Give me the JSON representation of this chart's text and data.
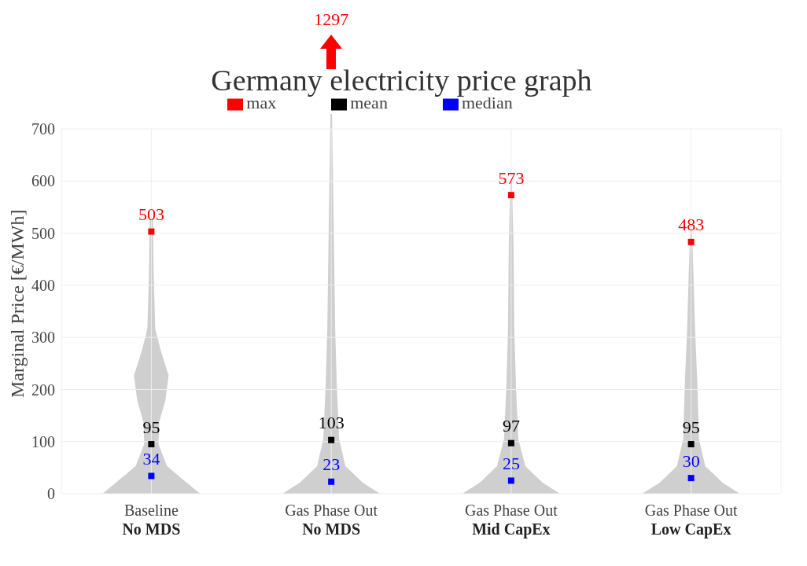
{
  "chart_data": {
    "type": "scatter",
    "title": "Germany electricity price graph",
    "ylabel": "Marginal Price [€/MWh]",
    "categories": [
      "Baseline\nNo MDS",
      "Gas Phase Out\nNo MDS",
      "Gas Phase Out\nMid CapEx",
      "Gas Phase Out\nLow CapEx"
    ],
    "series": [
      {
        "name": "median",
        "color": "#0000ff",
        "values": [
          34,
          23,
          25,
          30
        ]
      },
      {
        "name": "mean",
        "color": "#000000",
        "values": [
          95,
          103,
          97,
          95
        ]
      },
      {
        "name": "max",
        "color": "#ff0000",
        "values": [
          503,
          null,
          573,
          483
        ]
      }
    ],
    "annotations": [
      "1297"
    ],
    "ylim": [
      0,
      700
    ],
    "yticks": [
      0,
      100,
      200,
      300,
      400,
      500,
      600,
      700
    ],
    "grid": true,
    "legend": "top",
    "marker": "square",
    "data_labels": true
  }
}
